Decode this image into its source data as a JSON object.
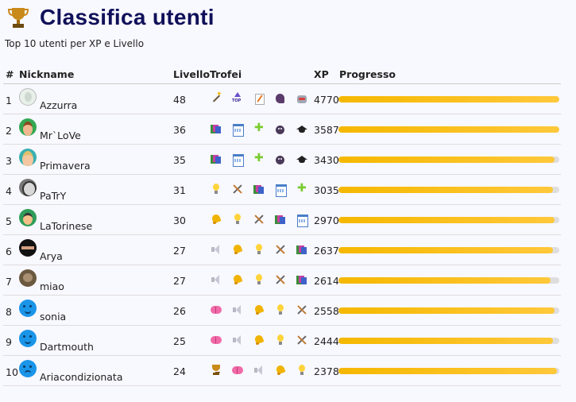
{
  "header": {
    "title": "Classifica utenti",
    "icon": "trophy-icon"
  },
  "subtitle": "Top 10 utenti per XP e Livello",
  "columns": {
    "rank": "#",
    "nickname": "Nickname",
    "level": "Livello",
    "trophies": "Trofei",
    "xp": "XP",
    "progress": "Progresso"
  },
  "colors": {
    "title": "#10105a",
    "progress_fill": "#f5b800",
    "progress_track": "#dedede"
  },
  "rows": [
    {
      "rank": "1",
      "avatar": "avatar-azzurra",
      "nickname": "Azzurra",
      "level": "48",
      "xp": "4770",
      "progress": 1.0,
      "trophies": [
        "magic-wand-icon",
        "top-arrow-icon",
        "memo-icon",
        "head-silhouette-icon",
        "robot-icon"
      ]
    },
    {
      "rank": "2",
      "avatar": "avatar-mrlove",
      "nickname": "Mr`LoVe",
      "level": "36",
      "xp": "3587",
      "progress": 1.0,
      "trophies": [
        "books-icon",
        "calendar-icon",
        "puzzle-icon",
        "bomb-icon",
        "graduation-cap-icon"
      ]
    },
    {
      "rank": "3",
      "avatar": "avatar-primavera",
      "nickname": "Primavera",
      "level": "35",
      "xp": "3430",
      "progress": 0.98,
      "trophies": [
        "books-icon",
        "calendar-icon",
        "puzzle-icon",
        "bomb-icon",
        "graduation-cap-icon"
      ]
    },
    {
      "rank": "4",
      "avatar": "avatar-patry",
      "nickname": "PaTrY",
      "level": "31",
      "xp": "3035",
      "progress": 0.97,
      "trophies": [
        "lightbulb-icon",
        "tools-icon",
        "books-icon",
        "calendar-icon",
        "puzzle-icon"
      ]
    },
    {
      "rank": "5",
      "avatar": "avatar-latorinese",
      "nickname": "LaTorinese",
      "level": "30",
      "xp": "2970",
      "progress": 0.98,
      "trophies": [
        "bell-icon",
        "lightbulb-icon",
        "tools-icon",
        "books-icon",
        "calendar-icon"
      ]
    },
    {
      "rank": "6",
      "avatar": "avatar-arya",
      "nickname": "Arya",
      "level": "27",
      "xp": "2637",
      "progress": 0.97,
      "trophies": [
        "speaker-icon",
        "bell-icon",
        "lightbulb-icon",
        "tools-icon",
        "books-icon"
      ]
    },
    {
      "rank": "7",
      "avatar": "avatar-miao",
      "nickname": "miao",
      "level": "27",
      "xp": "2614",
      "progress": 0.96,
      "trophies": [
        "speaker-icon",
        "bell-icon",
        "lightbulb-icon",
        "tools-icon",
        "books-icon"
      ]
    },
    {
      "rank": "8",
      "avatar": "avatar-sonia",
      "nickname": "sonia",
      "level": "26",
      "xp": "2558",
      "progress": 0.98,
      "trophies": [
        "brain-icon",
        "speaker-icon",
        "bell-icon",
        "lightbulb-icon",
        "tools-icon"
      ]
    },
    {
      "rank": "9",
      "avatar": "avatar-dartmouth",
      "nickname": "Dartmouth",
      "level": "25",
      "xp": "2444",
      "progress": 0.97,
      "trophies": [
        "brain-icon",
        "speaker-icon",
        "bell-icon",
        "lightbulb-icon",
        "tools-icon"
      ]
    },
    {
      "rank": "10",
      "avatar": "avatar-ariacondizionata",
      "nickname": "Ariacondizionata",
      "level": "24",
      "xp": "2378",
      "progress": 0.99,
      "trophies": [
        "trophy-icon",
        "brain-icon",
        "speaker-icon",
        "bell-icon",
        "lightbulb-icon"
      ]
    }
  ]
}
